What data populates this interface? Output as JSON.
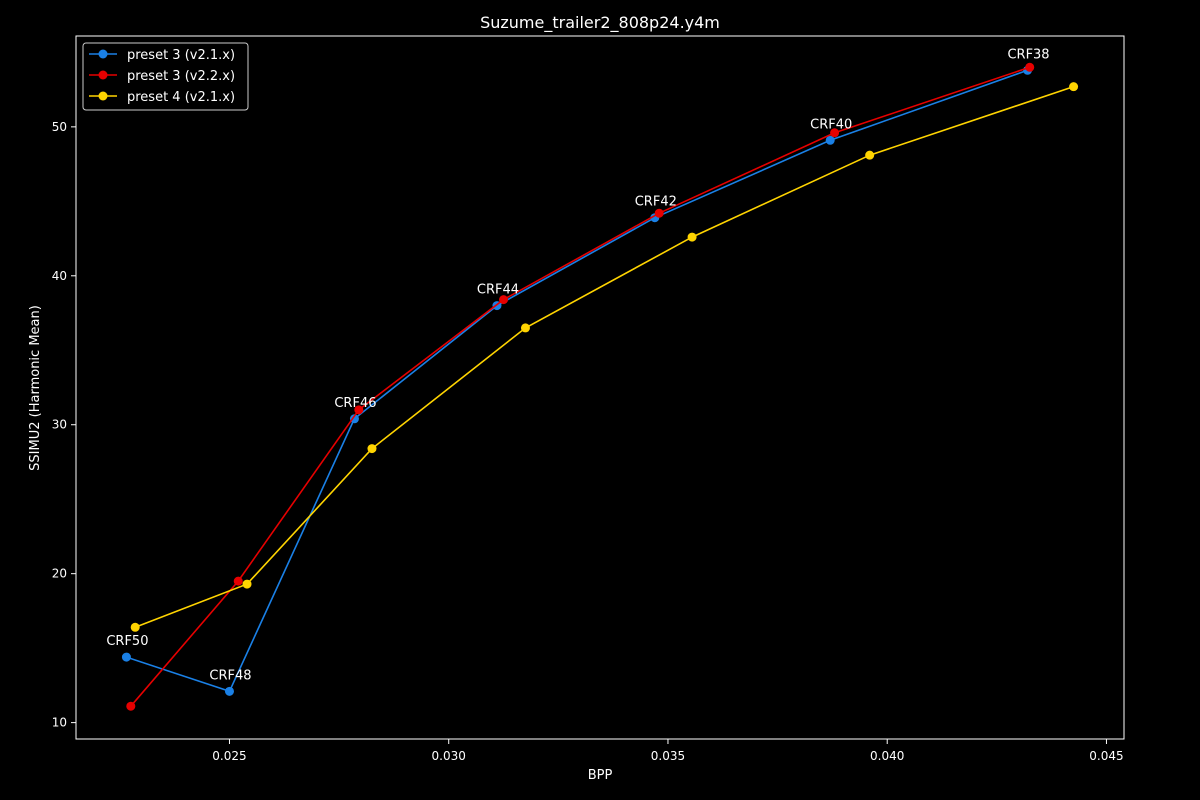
{
  "chart_data": {
    "type": "line",
    "title": "Suzume_trailer2_808p24.y4m",
    "xlabel": "BPP",
    "ylabel": "SSIMU2 (Harmonic Mean)",
    "xlim": [
      0.0215,
      0.0454
    ],
    "ylim": [
      8.9,
      56.1
    ],
    "xticks": [
      {
        "value": 0.025,
        "label": "0.025"
      },
      {
        "value": 0.03,
        "label": "0.030"
      },
      {
        "value": 0.035,
        "label": "0.035"
      },
      {
        "value": 0.04,
        "label": "0.040"
      },
      {
        "value": 0.045,
        "label": "0.045"
      }
    ],
    "yticks": [
      {
        "value": 10,
        "label": "10"
      },
      {
        "value": 20,
        "label": "20"
      },
      {
        "value": 30,
        "label": "30"
      },
      {
        "value": 40,
        "label": "40"
      },
      {
        "value": 50,
        "label": "50"
      }
    ],
    "grid": false,
    "legend_position": "top-left",
    "series": [
      {
        "name": "preset 3 (v2.1.x)",
        "color": "#1a80e6",
        "points": [
          {
            "x": 0.02265,
            "y": 14.4
          },
          {
            "x": 0.025,
            "y": 12.1
          },
          {
            "x": 0.02785,
            "y": 30.4
          },
          {
            "x": 0.0311,
            "y": 38.0
          },
          {
            "x": 0.0347,
            "y": 43.9
          },
          {
            "x": 0.0387,
            "y": 49.1
          },
          {
            "x": 0.0432,
            "y": 53.8
          }
        ]
      },
      {
        "name": "preset 3 (v2.2.x)",
        "color": "#e60000",
        "points": [
          {
            "x": 0.02275,
            "y": 11.1
          },
          {
            "x": 0.0252,
            "y": 19.5
          },
          {
            "x": 0.02795,
            "y": 31.0
          },
          {
            "x": 0.03125,
            "y": 38.4
          },
          {
            "x": 0.0348,
            "y": 44.2
          },
          {
            "x": 0.0388,
            "y": 49.6
          },
          {
            "x": 0.04325,
            "y": 54.0
          }
        ]
      },
      {
        "name": "preset 4 (v2.1.x)",
        "color": "#ffd400",
        "points": [
          {
            "x": 0.02285,
            "y": 16.4
          },
          {
            "x": 0.0254,
            "y": 19.3
          },
          {
            "x": 0.02825,
            "y": 28.4
          },
          {
            "x": 0.03175,
            "y": 36.5
          },
          {
            "x": 0.03555,
            "y": 42.6
          },
          {
            "x": 0.0396,
            "y": 48.1
          },
          {
            "x": 0.04425,
            "y": 52.7
          }
        ]
      }
    ],
    "annotations": [
      {
        "text": "CRF50",
        "x": 0.02265,
        "y": 14.4
      },
      {
        "text": "CRF48",
        "x": 0.025,
        "y": 12.1
      },
      {
        "text": "CRF46",
        "x": 0.02785,
        "y": 30.4
      },
      {
        "text": "CRF44",
        "x": 0.0311,
        "y": 38.0
      },
      {
        "text": "CRF42",
        "x": 0.0347,
        "y": 43.9
      },
      {
        "text": "CRF40",
        "x": 0.0387,
        "y": 49.1
      },
      {
        "text": "CRF38",
        "x": 0.0432,
        "y": 53.8
      }
    ]
  }
}
